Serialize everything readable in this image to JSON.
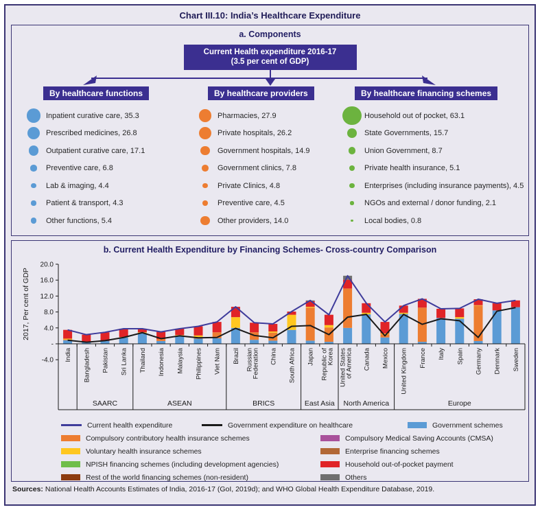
{
  "title": "Chart III.10: India’s Healthcare Expenditure",
  "panel_a": {
    "title": "a. Components",
    "root_box": {
      "line1": "Current Health expenditure 2016-17",
      "line2": "(3.5 per cent of GDP)"
    },
    "groups": [
      {
        "header": "By healthcare functions",
        "bubble_color": "#5b9bd5",
        "items": [
          {
            "label": "Inpatient curative care",
            "value": "35.3"
          },
          {
            "label": "Prescribed medicines",
            "value": "26.8"
          },
          {
            "label": "Outpatient curative care",
            "value": "17.1"
          },
          {
            "label": "Preventive care",
            "value": "6.8"
          },
          {
            "label": "Lab & imaging",
            "value": "4.4"
          },
          {
            "label": "Patient & transport",
            "value": "4.3"
          },
          {
            "label": "Other functions",
            "value": "5.4"
          }
        ]
      },
      {
        "header": "By healthcare providers",
        "bubble_color": "#ed7d31",
        "items": [
          {
            "label": "Pharmacies",
            "value": "27.9"
          },
          {
            "label": "Private hospitals",
            "value": "26.2"
          },
          {
            "label": "Government hospitals",
            "value": "14.9"
          },
          {
            "label": "Government clinics",
            "value": "7.8"
          },
          {
            "label": "Private Clinics",
            "value": "4.8"
          },
          {
            "label": "Preventive care",
            "value": "4.5"
          },
          {
            "label": "Other providers",
            "value": "14.0"
          }
        ]
      },
      {
        "header": "By healthcare financing schemes",
        "bubble_color": "#6cb33f",
        "items": [
          {
            "label": "Household out of pocket",
            "value": "63.1"
          },
          {
            "label": "State Governments",
            "value": "15.7"
          },
          {
            "label": "Union Government",
            "value": "8.7"
          },
          {
            "label": "Private health insurance",
            "value": "5.1"
          },
          {
            "label": "Enterprises (including insurance payments)",
            "value": "4.5"
          },
          {
            "label": "NGOs and external / donor funding",
            "value": "2.1"
          },
          {
            "label": "Local bodies",
            "value": "0.8"
          }
        ]
      }
    ]
  },
  "panel_b": {
    "title": "b. Current Health Expenditure by Financing Schemes- Cross-country Comparison"
  },
  "chart_data": {
    "type": "bar",
    "subtype": "stacked-bars-with-lines",
    "title": "b. Current Health Expenditure by Financing Schemes- Cross-country Comparison",
    "ylabel": "2017, Per cent of GDP",
    "ylim": [
      -4,
      20
    ],
    "yticks": [
      {
        "v": 20,
        "label": "20.0"
      },
      {
        "v": 16,
        "label": "16.0"
      },
      {
        "v": 12,
        "label": "12.0"
      },
      {
        "v": 8,
        "label": "8.0"
      },
      {
        "v": 4,
        "label": "4.0"
      },
      {
        "v": 0,
        "label": "-"
      },
      {
        "v": -4,
        "label": "-4.0"
      }
    ],
    "categories": [
      "India",
      "Bangladesh",
      "Pakistan",
      "Sri Lanka",
      "Thailand",
      "Indonesia",
      "Malaysia",
      "Philippines",
      "Viet Nam",
      "Brazil",
      "Russian\nFederation",
      "China",
      "South Africa",
      "Japan",
      "Republic of\nKorea",
      "United States\nof America",
      "Canada",
      "Mexico",
      "United Kingdom",
      "France",
      "Italy",
      "Spain",
      "Germany",
      "Denmark",
      "Sweden"
    ],
    "groups": [
      {
        "label": "",
        "from": 0,
        "to": 0
      },
      {
        "label": "SAARC",
        "from": 1,
        "to": 3
      },
      {
        "label": "ASEAN",
        "from": 4,
        "to": 8
      },
      {
        "label": "BRICS",
        "from": 9,
        "to": 12
      },
      {
        "label": "East Asia",
        "from": 13,
        "to": 14
      },
      {
        "label": "North America",
        "from": 15,
        "to": 17
      },
      {
        "label": "Europe",
        "from": 18,
        "to": 24
      }
    ],
    "series": [
      {
        "name": "Government schemes",
        "color": "#5b9bd5",
        "values": [
          0.9,
          0.4,
          0.7,
          1.6,
          2.7,
          0.7,
          1.9,
          1.3,
          1.4,
          4.0,
          1.0,
          0.8,
          3.5,
          0.8,
          0.5,
          4.0,
          7.4,
          1.6,
          7.5,
          0.5,
          6.5,
          6.3,
          0.7,
          8.4,
          9.2
        ]
      },
      {
        "name": "Compulsory contributory health insurance schemes",
        "color": "#ed7d31",
        "values": [
          0.2,
          0,
          0,
          0,
          0,
          0.5,
          0,
          0.4,
          1.5,
          0,
          1.9,
          2.0,
          0,
          8.3,
          3.6,
          9.9,
          0,
          0.8,
          0,
          8.6,
          0,
          0,
          8.9,
          0,
          0
        ]
      },
      {
        "name": "Voluntary health insurance schemes",
        "color": "#ffc720",
        "values": [
          0.2,
          0,
          0,
          0.1,
          0.2,
          0,
          0.3,
          0.4,
          0,
          2.7,
          0,
          0.3,
          3.8,
          0.2,
          0.6,
          0,
          0.4,
          0.2,
          0.3,
          0,
          0,
          0.4,
          0.1,
          0,
          0
        ]
      },
      {
        "name": "Household out-of-pocket payment",
        "color": "#e02427",
        "values": [
          2.2,
          1.9,
          2.2,
          2.1,
          0.9,
          1.8,
          1.6,
          2.3,
          2.6,
          2.6,
          2.4,
          1.9,
          0.8,
          1.4,
          2.6,
          2.2,
          2.4,
          2.9,
          1.8,
          2.2,
          2.3,
          2.2,
          1.5,
          1.8,
          1.7
        ]
      },
      {
        "name": "Others",
        "color": "#6f6f6f",
        "values": [
          0,
          0,
          0,
          0,
          0,
          0,
          0,
          0,
          0,
          0,
          0,
          0,
          0,
          0.2,
          0,
          1.0,
          0,
          0,
          0,
          0,
          0,
          0,
          0,
          0,
          0
        ]
      }
    ],
    "lines": [
      {
        "name": "Current health expenditure",
        "color": "#3f3c9b",
        "values": [
          3.5,
          2.3,
          2.9,
          3.8,
          3.8,
          3.0,
          3.8,
          4.4,
          5.5,
          9.3,
          5.3,
          5.0,
          8.1,
          10.9,
          7.3,
          17.1,
          10.2,
          5.5,
          9.6,
          11.3,
          8.8,
          8.9,
          11.2,
          10.2,
          10.9
        ]
      },
      {
        "name": "Government expenditure on healthcare",
        "color": "#1a1a1a",
        "values": [
          0.9,
          0.4,
          0.8,
          1.6,
          2.8,
          1.3,
          2.0,
          1.5,
          1.6,
          3.9,
          2.1,
          1.5,
          4.4,
          4.6,
          2.3,
          6.7,
          7.4,
          2.0,
          7.4,
          4.9,
          6.3,
          5.8,
          1.6,
          8.2,
          9.1
        ]
      }
    ],
    "legend_position": "bottom",
    "grid": false
  },
  "legend": {
    "rows": [
      [
        {
          "type": "line",
          "color": "#3f3c9b",
          "label": "Current health expenditure"
        },
        {
          "type": "line",
          "color": "#1a1a1a",
          "label": "Government expenditure on healthcare"
        },
        {
          "type": "box",
          "color": "#5b9bd5",
          "label": "Government schemes"
        }
      ],
      [
        {
          "type": "box",
          "color": "#ed7d31",
          "label": "Compulsory contributory health insurance schemes"
        },
        {
          "type": "box",
          "color": "#a9519b",
          "label": "Compulsory Medical Saving Accounts (CMSA)"
        }
      ],
      [
        {
          "type": "box",
          "color": "#ffc720",
          "label": "Voluntary health insurance schemes"
        },
        {
          "type": "box",
          "color": "#b26836",
          "label": "Enterprise financing schemes"
        }
      ],
      [
        {
          "type": "box",
          "color": "#6fbe4a",
          "label": "NPISH financing schemes (including development agencies)"
        },
        {
          "type": "box",
          "color": "#e02427",
          "label": "Household out-of-pocket payment"
        }
      ],
      [
        {
          "type": "box",
          "color": "#8d3c10",
          "label": "Rest of the world financing schemes (non-resident)"
        },
        {
          "type": "box",
          "color": "#6f6f6f",
          "label": "Others"
        }
      ]
    ]
  },
  "sources": {
    "prefix": "Sources:",
    "text": " National Health Accounts Estimates of India, 2016-17 (GoI, 2019d); and WHO Global Health Expenditure Database, 2019."
  },
  "colors": {
    "background": "#eae8f0",
    "border": "#3a3473",
    "header_box": "#3b2f90",
    "title_text": "#201c57"
  }
}
